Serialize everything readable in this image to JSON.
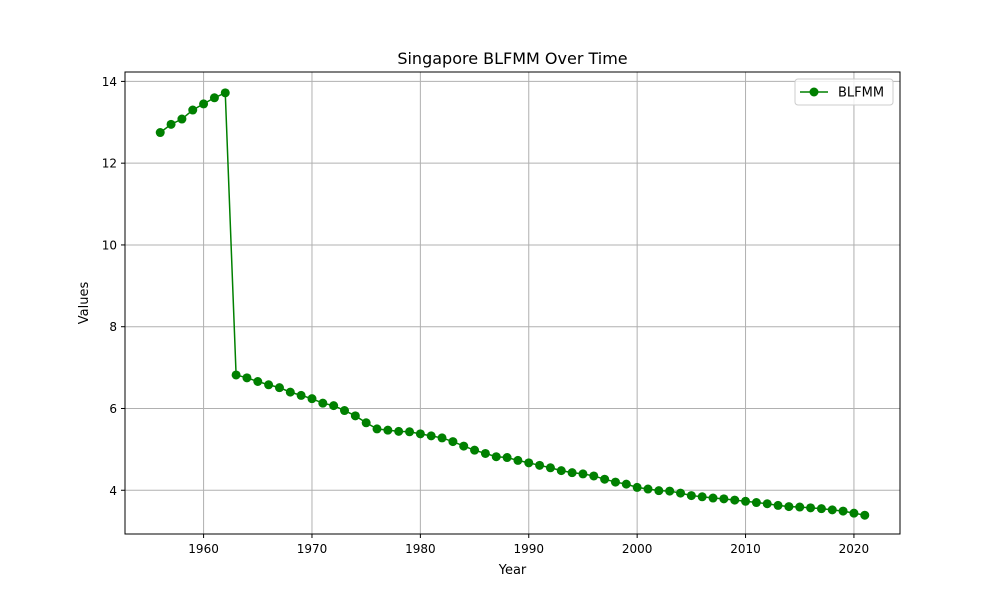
{
  "chart_data": {
    "type": "line",
    "title": "Singapore BLFMM Over Time",
    "xlabel": "Year",
    "ylabel": "Values",
    "xlim": [
      1952.75,
      2024.25
    ],
    "ylim": [
      2.93,
      14.23
    ],
    "x_ticks": [
      1960,
      1970,
      1980,
      1990,
      2000,
      2010,
      2020
    ],
    "y_ticks": [
      4,
      6,
      8,
      10,
      12,
      14
    ],
    "grid": true,
    "legend_position": "top-right",
    "series": [
      {
        "name": "BLFMM",
        "color": "#008000",
        "marker": "circle",
        "x": [
          1956,
          1957,
          1958,
          1959,
          1960,
          1961,
          1962,
          1963,
          1964,
          1965,
          1966,
          1967,
          1968,
          1969,
          1970,
          1971,
          1972,
          1973,
          1974,
          1975,
          1976,
          1977,
          1978,
          1979,
          1980,
          1981,
          1982,
          1983,
          1984,
          1985,
          1986,
          1987,
          1988,
          1989,
          1990,
          1991,
          1992,
          1993,
          1994,
          1995,
          1996,
          1997,
          1998,
          1999,
          2000,
          2001,
          2002,
          2003,
          2004,
          2005,
          2006,
          2007,
          2008,
          2009,
          2010,
          2011,
          2012,
          2013,
          2014,
          2015,
          2016,
          2017,
          2018,
          2019,
          2020,
          2021
        ],
        "values": [
          12.75,
          12.95,
          13.08,
          13.3,
          13.45,
          13.6,
          13.72,
          6.82,
          6.75,
          6.66,
          6.58,
          6.51,
          6.4,
          6.32,
          6.24,
          6.13,
          6.07,
          5.95,
          5.82,
          5.65,
          5.5,
          5.47,
          5.44,
          5.43,
          5.38,
          5.33,
          5.28,
          5.19,
          5.08,
          4.98,
          4.9,
          4.82,
          4.8,
          4.73,
          4.67,
          4.61,
          4.55,
          4.48,
          4.43,
          4.4,
          4.35,
          4.27,
          4.2,
          4.15,
          4.07,
          4.03,
          3.99,
          3.98,
          3.93,
          3.87,
          3.84,
          3.81,
          3.79,
          3.76,
          3.73,
          3.7,
          3.67,
          3.63,
          3.6,
          3.59,
          3.57,
          3.55,
          3.52,
          3.49,
          3.44,
          3.39
        ]
      }
    ]
  }
}
